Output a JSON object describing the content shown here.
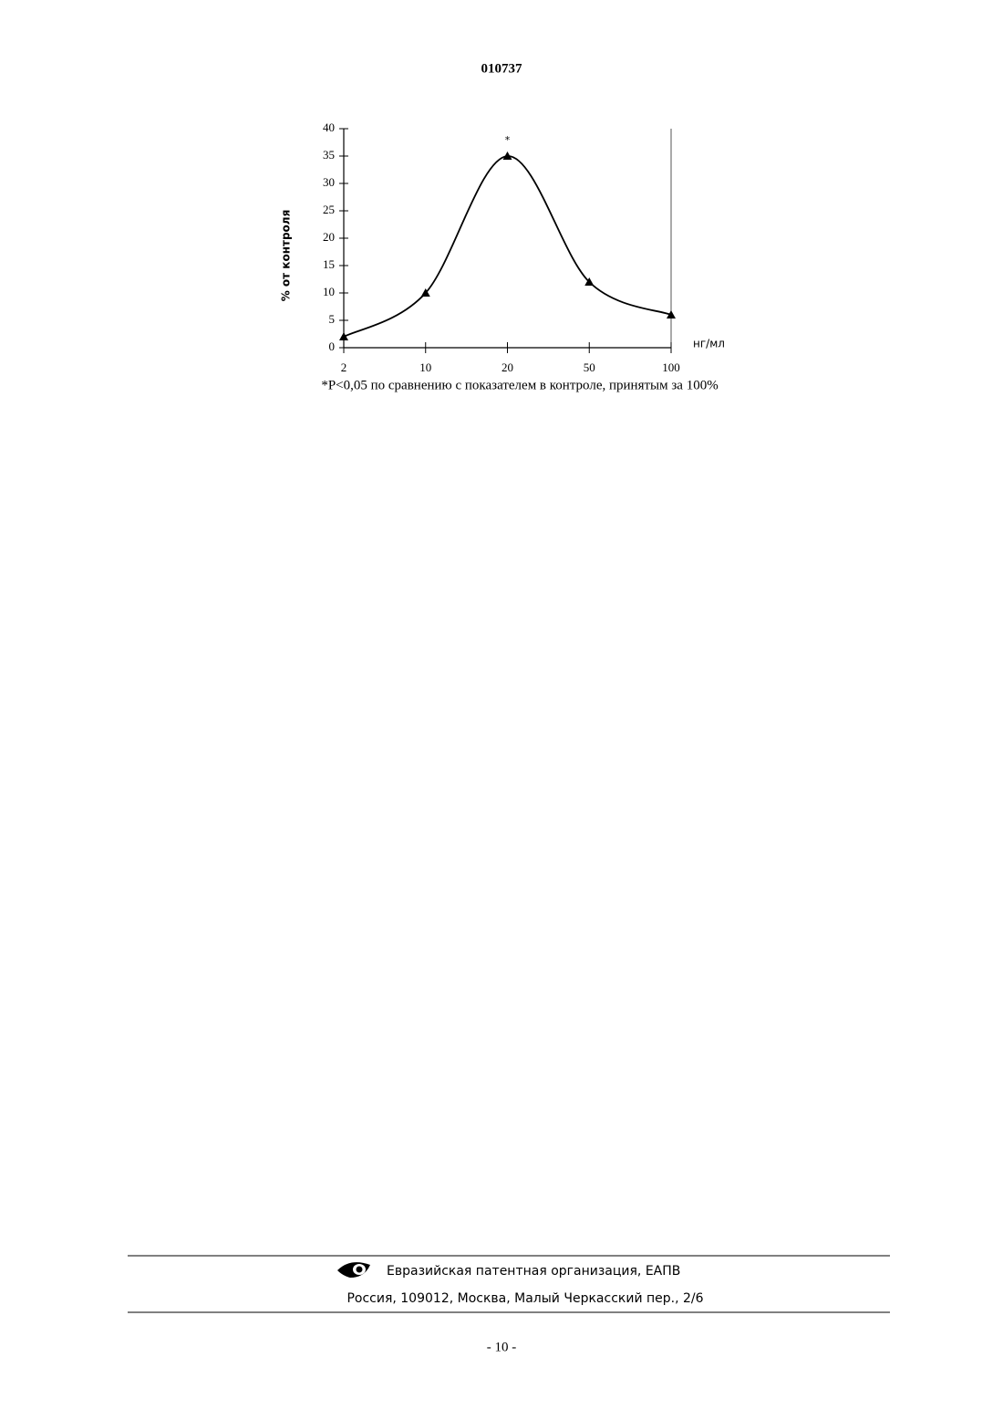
{
  "header": {
    "number": "010737"
  },
  "chart_data": {
    "type": "line",
    "y_label": "% от контроля",
    "x_unit": "нг/мл",
    "categories": [
      "2",
      "10",
      "20",
      "50",
      "100"
    ],
    "values": [
      2,
      10,
      35,
      12,
      6
    ],
    "annotation": "*",
    "color": "#000000",
    "ylim": [
      0,
      40
    ],
    "yticks": [
      0,
      5,
      10,
      15,
      20,
      25,
      30,
      35,
      40
    ],
    "grid": false
  },
  "footnote": "*P<0,05 по сравнению с показателем в контроле, принятым за 100%",
  "footer": {
    "organization": "Евразийская патентная организация, ЕАПВ",
    "address": "Россия, 109012, Москва, Малый Черкасский пер., 2/6"
  },
  "page_number": "- 10 -"
}
